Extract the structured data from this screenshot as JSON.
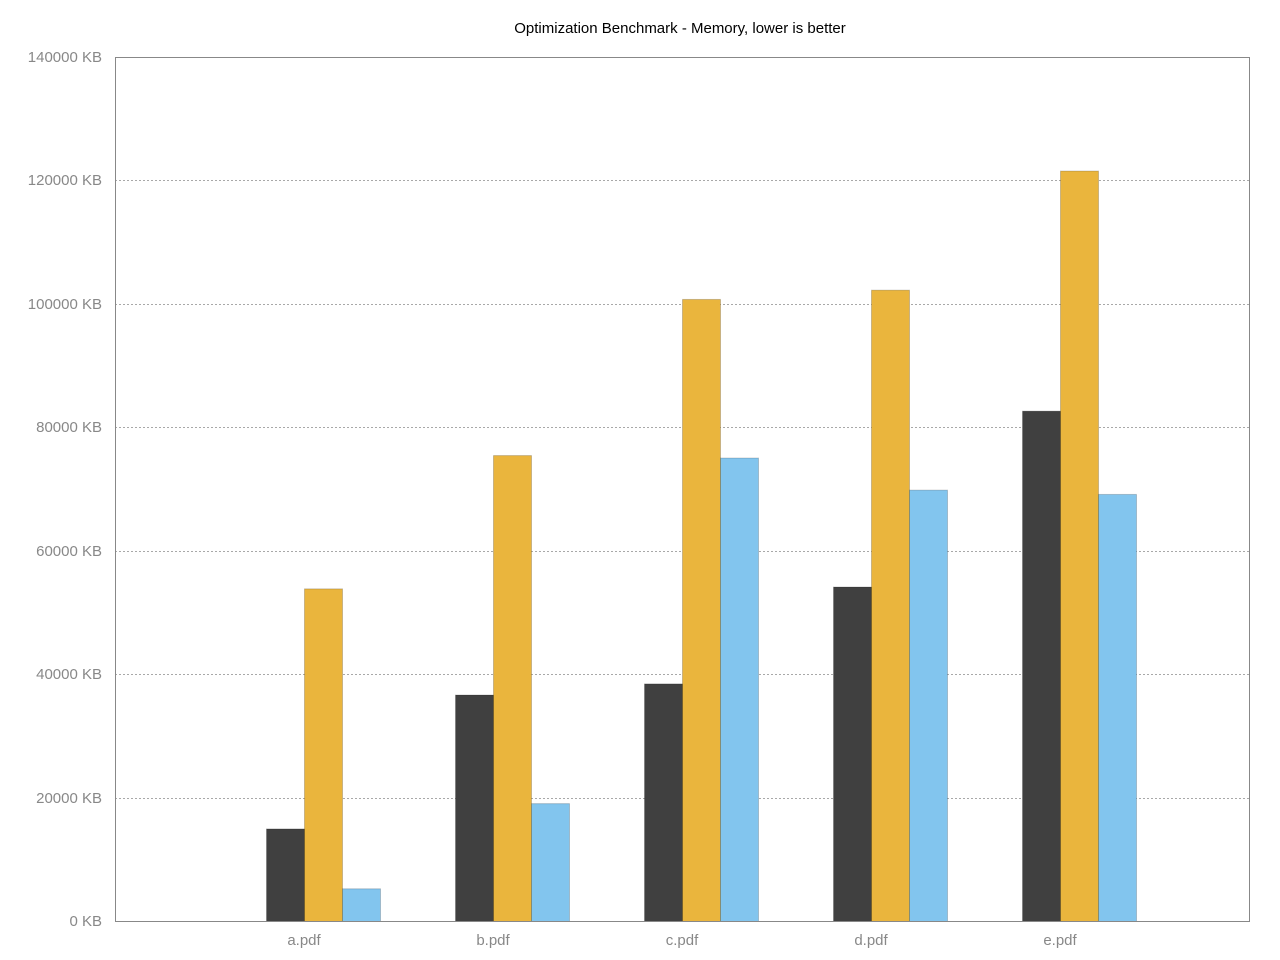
{
  "chart_data": {
    "type": "bar",
    "title": "Optimization Benchmark - Memory, lower is better",
    "xlabel": "",
    "ylabel": "",
    "unit_suffix": " KB",
    "categories": [
      "a.pdf",
      "b.pdf",
      "c.pdf",
      "d.pdf",
      "e.pdf"
    ],
    "series": [
      {
        "color": "#404040",
        "values": [
          15000,
          36700,
          38500,
          54200,
          82700
        ]
      },
      {
        "color": "#eab53d",
        "values": [
          53900,
          75500,
          100800,
          102300,
          121600
        ]
      },
      {
        "color": "#82c5ee",
        "values": [
          5300,
          19100,
          75100,
          69900,
          69200
        ]
      }
    ],
    "ylim": [
      0,
      140000
    ],
    "yticks": [
      0,
      20000,
      40000,
      60000,
      80000,
      100000,
      120000,
      140000
    ],
    "ytick_labels": [
      "0 KB",
      "20000 KB",
      "40000 KB",
      "60000 KB",
      "80000 KB",
      "100000 KB",
      "120000 KB",
      "140000 KB"
    ],
    "grid": true,
    "grid_style": "dotted",
    "legend": "none"
  }
}
